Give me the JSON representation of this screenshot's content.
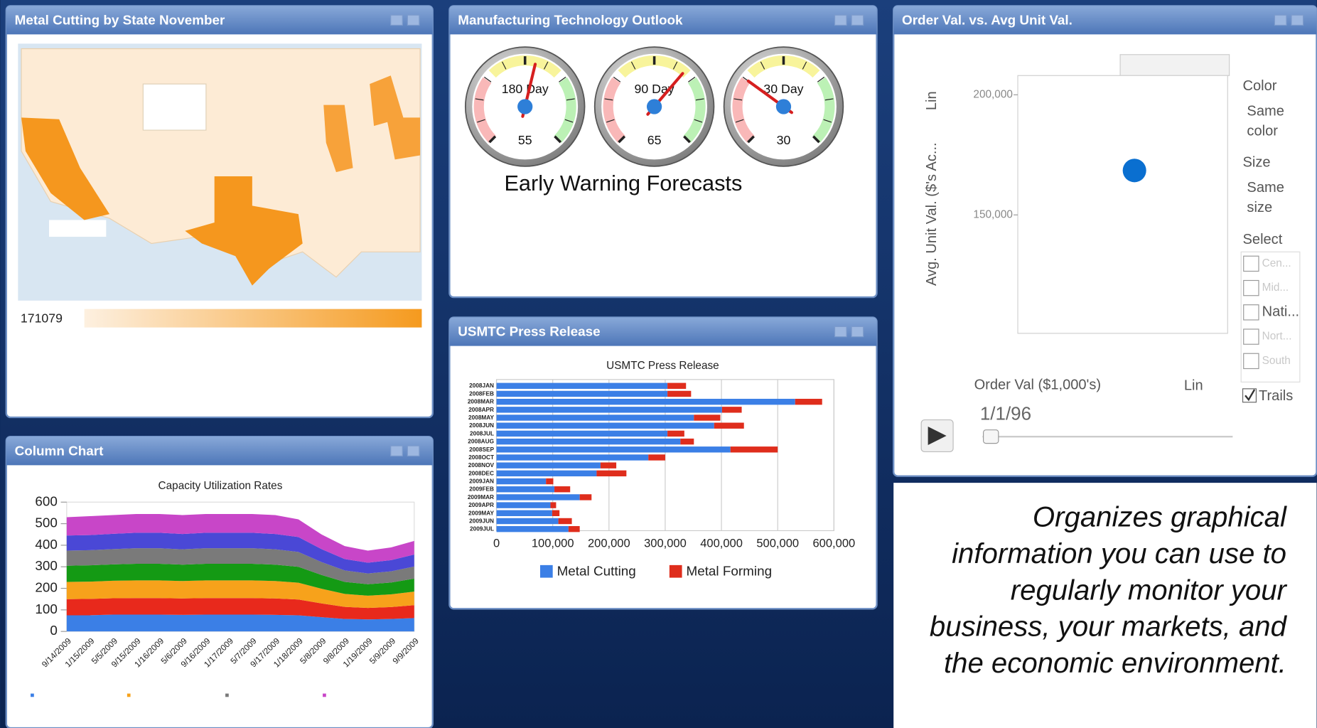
{
  "panels": [
    {
      "title": "Metal Cutting by State November",
      "legend_label": "171079"
    },
    {
      "title": "Manufacturing Technology Outlook",
      "gauges": {
        "type": "gauge",
        "range": [
          0,
          100
        ],
        "items": [
          {
            "label": "180 Day",
            "value": 55
          },
          {
            "label": "90 Day",
            "value": 65
          },
          {
            "label": "30 Day",
            "value": 30
          }
        ]
      },
      "caption": "Early Warning Forecasts"
    },
    {
      "title": "Order Val. vs. Avg Unit Val.",
      "chart": {
        "type": "scatter",
        "x_label": "Order Val ($1,000's)",
        "y_label": "Avg. Unit Val. ($'s Ac...",
        "x_scale": "Lin",
        "y_scale": "Lin",
        "ylim": [
          100700,
          208000
        ],
        "yticks": [
          {
            "value": 150000,
            "label": "150,000"
          },
          {
            "value": 200000,
            "label": "200,000"
          }
        ],
        "values": [
          168500
        ],
        "color": "#0a6fd0"
      },
      "controls": {
        "color_heading": "Color",
        "color_value": [
          "Same",
          "color"
        ],
        "size_heading": "Size",
        "size_value": [
          "Same",
          "size"
        ],
        "select_heading": "Select",
        "select_items": [
          "Cen...",
          "Mid...",
          "Nati...",
          "Nort...",
          "South"
        ],
        "trails": "Trails",
        "time": "1/1/96"
      }
    },
    {
      "title": "Column Chart",
      "chart": {
        "type": "area",
        "stacked": true,
        "title": "Capacity Utilization Rates",
        "categories": [
          "9/14/2009",
          "1/15/2009",
          "5/5/2009",
          "9/15/2009",
          "1/16/2009",
          "5/6/2009",
          "9/16/2009",
          "1/17/2009",
          "5/7/2009",
          "9/17/2009",
          "1/18/2009",
          "5/8/2009",
          "9/8/2009",
          "1/19/2009",
          "5/9/2009",
          "9/9/2009"
        ],
        "ylim": [
          0,
          600
        ],
        "yticks": [
          0,
          100,
          200,
          300,
          400,
          500,
          600
        ],
        "series": [
          {
            "color": "#3b7fe6",
            "values": [
              75,
              75,
              78,
              78,
              78,
              77,
              78,
              78,
              78,
              77,
              75,
              66,
              58,
              56,
              58,
              62
            ]
          },
          {
            "color": "#e8291c",
            "values": [
              75,
              76,
              76,
              77,
              77,
              76,
              77,
              77,
              77,
              76,
              73,
              64,
              56,
              53,
              55,
              60
            ]
          },
          {
            "color": "#f7a21b",
            "values": [
              80,
              80,
              81,
              82,
              82,
              81,
              82,
              82,
              82,
              81,
              78,
              68,
              60,
              57,
              59,
              63
            ]
          },
          {
            "color": "#149a14",
            "values": [
              75,
              76,
              76,
              77,
              77,
              76,
              77,
              77,
              77,
              76,
              74,
              64,
              56,
              53,
              55,
              60
            ]
          },
          {
            "color": "#7a7a7a",
            "values": [
              70,
              70,
              71,
              72,
              72,
              71,
              72,
              72,
              72,
              71,
              69,
              60,
              53,
              50,
              52,
              56
            ]
          },
          {
            "color": "#4a48d6",
            "values": [
              70,
              70,
              71,
              72,
              72,
              71,
              72,
              72,
              72,
              71,
              69,
              60,
              53,
              50,
              52,
              56
            ]
          },
          {
            "color": "#c846c8",
            "values": [
              85,
              88,
              87,
              87,
              87,
              88,
              87,
              87,
              87,
              88,
              82,
              68,
              60,
              56,
              59,
              63
            ]
          }
        ]
      }
    },
    {
      "title": "USMTC Press Release",
      "chart": {
        "type": "bar",
        "orientation": "horizontal",
        "stacked": true,
        "title": "USMTC Press Release",
        "grid": true,
        "categories": [
          "2008JAN",
          "2008FEB",
          "2008MAR",
          "2008APR",
          "2008MAY",
          "2008JUN",
          "2008JUL",
          "2008AUG",
          "2008SEP",
          "2008OCT",
          "2008NOV",
          "2008DEC",
          "2009JAN",
          "2009FEB",
          "2009MAR",
          "2009APR",
          "2009MAY",
          "2009JUN",
          "2009JUL"
        ],
        "xlim": [
          0,
          600000
        ],
        "xticks": [
          0,
          {
            "value": 100000,
            "label": "100,000"
          },
          {
            "value": 200000,
            "label": "200,000"
          },
          {
            "value": 300000,
            "label": "300,000"
          },
          {
            "value": 400000,
            "label": "400,000"
          },
          {
            "value": 500000,
            "label": "500,000"
          },
          {
            "value": 600000,
            "label": "600,000"
          }
        ],
        "series": [
          {
            "name": "Metal Cutting",
            "color": "#3b7fe6",
            "values": [
              304000,
              304000,
              531000,
              401000,
              351000,
              387000,
              304000,
              327000,
              416000,
              270000,
              185000,
              178000,
              88000,
              103000,
              148000,
              96000,
              99000,
              110000,
              128000
            ]
          },
          {
            "name": "Metal Forming",
            "color": "#df2d1c",
            "values": [
              33000,
              42000,
              48000,
              35000,
              47000,
              53000,
              30000,
              24000,
              84000,
              30000,
              28000,
              53000,
              13000,
              28000,
              21000,
              10000,
              13000,
              24000,
              20000
            ]
          }
        ]
      }
    }
  ],
  "tagline": [
    "Organizes graphical",
    "information you can use to",
    "regularly monitor your",
    "business, your markets, and",
    "the economic environment."
  ]
}
